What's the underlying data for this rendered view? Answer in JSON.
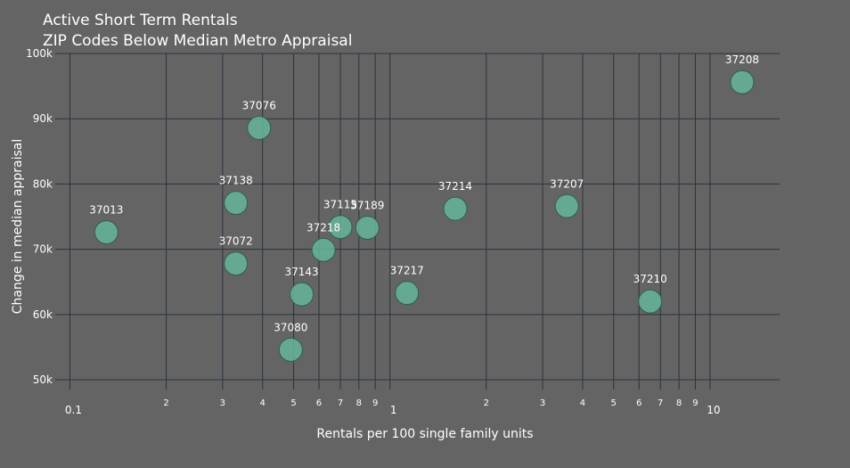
{
  "chart_data": {
    "type": "scatter",
    "title": "Active Short Term Rentals",
    "subtitle": "ZIP Codes Below Median Metro Appraisal",
    "xlabel": "Rentals per 100 single family units",
    "ylabel": "Change in median appraisal",
    "x_scale": "log",
    "xlim": [
      0.09,
      16.5
    ],
    "ylim": [
      48500,
      100000
    ],
    "x_major_ticks": [
      {
        "value": 0.1,
        "label": "0.1"
      },
      {
        "value": 1,
        "label": "1"
      },
      {
        "value": 10,
        "label": "10"
      }
    ],
    "x_minor_ticks": [
      {
        "value": 0.2,
        "label": "2"
      },
      {
        "value": 0.3,
        "label": "3"
      },
      {
        "value": 0.4,
        "label": "4"
      },
      {
        "value": 0.5,
        "label": "5"
      },
      {
        "value": 0.6,
        "label": "6"
      },
      {
        "value": 0.7,
        "label": "7"
      },
      {
        "value": 0.8,
        "label": "8"
      },
      {
        "value": 0.9,
        "label": "9"
      },
      {
        "value": 2,
        "label": "2"
      },
      {
        "value": 3,
        "label": "3"
      },
      {
        "value": 4,
        "label": "4"
      },
      {
        "value": 5,
        "label": "5"
      },
      {
        "value": 6,
        "label": "6"
      },
      {
        "value": 7,
        "label": "7"
      },
      {
        "value": 8,
        "label": "8"
      },
      {
        "value": 9,
        "label": "9"
      }
    ],
    "y_ticks": [
      {
        "value": 50000,
        "label": "50k"
      },
      {
        "value": 60000,
        "label": "60k"
      },
      {
        "value": 70000,
        "label": "70k"
      },
      {
        "value": 80000,
        "label": "80k"
      },
      {
        "value": 90000,
        "label": "90k"
      },
      {
        "value": 100000,
        "label": "100k"
      }
    ],
    "grid": true,
    "marker_color": "#66b59a",
    "points": [
      {
        "label": "37013",
        "x": 0.13,
        "y": 72600
      },
      {
        "label": "37076",
        "x": 0.39,
        "y": 88600
      },
      {
        "label": "37138",
        "x": 0.33,
        "y": 77100
      },
      {
        "label": "37072",
        "x": 0.33,
        "y": 67800
      },
      {
        "label": "37143",
        "x": 0.53,
        "y": 63100
      },
      {
        "label": "37080",
        "x": 0.49,
        "y": 54600
      },
      {
        "label": "37218",
        "x": 0.62,
        "y": 69900
      },
      {
        "label": "37115",
        "x": 0.7,
        "y": 73400
      },
      {
        "label": "37189",
        "x": 0.85,
        "y": 73300
      },
      {
        "label": "37217",
        "x": 1.13,
        "y": 63300
      },
      {
        "label": "37214",
        "x": 1.6,
        "y": 76200
      },
      {
        "label": "37207",
        "x": 3.57,
        "y": 76600
      },
      {
        "label": "37210",
        "x": 6.5,
        "y": 62000
      },
      {
        "label": "37208",
        "x": 12.6,
        "y": 95600
      }
    ]
  }
}
